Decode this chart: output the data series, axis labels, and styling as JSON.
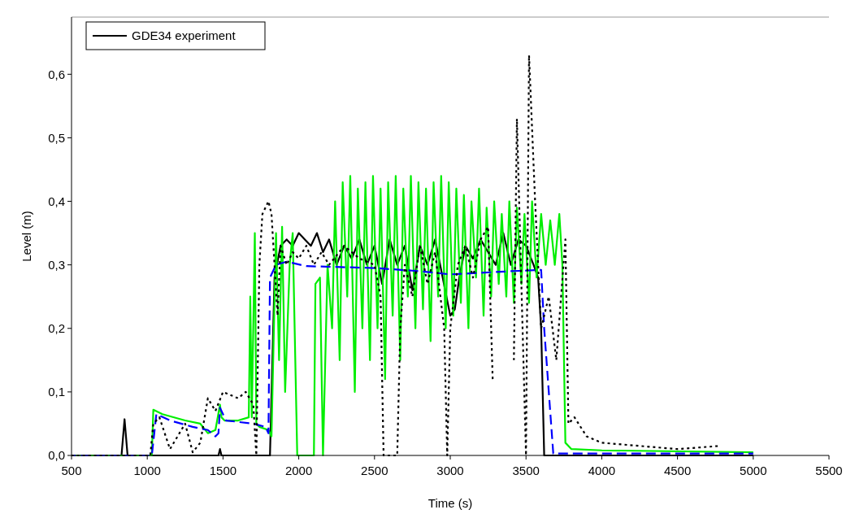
{
  "chart_data": {
    "type": "line",
    "xlabel": "Time (s)",
    "ylabel": "Level (m)",
    "xlim": [
      500,
      5500
    ],
    "xticks": [
      500,
      1000,
      1500,
      2000,
      2500,
      3000,
      3500,
      4000,
      4500,
      5000,
      5500
    ],
    "ylim": [
      0,
      0.69
    ],
    "yticks": [
      {
        "value": 0,
        "label": "0,0"
      },
      {
        "value": 0.1,
        "label": "0,1"
      },
      {
        "value": 0.2,
        "label": "0,2"
      },
      {
        "value": 0.3,
        "label": "0,3"
      },
      {
        "value": 0.4,
        "label": "0,4"
      },
      {
        "value": 0.5,
        "label": "0,5"
      },
      {
        "value": 0.6,
        "label": "0,6"
      }
    ],
    "grid": false,
    "legend": "top left",
    "series": [
      {
        "name": "GDE34 experiment",
        "color": "#000000",
        "line_style": "solid",
        "x": [
          500,
          830,
          850,
          870,
          1470,
          1480,
          1490,
          1810,
          1840,
          1880,
          1920,
          1960,
          2000,
          2040,
          2080,
          2120,
          2160,
          2200,
          2250,
          2300,
          2350,
          2400,
          2450,
          2500,
          2550,
          2600,
          2650,
          2700,
          2750,
          2800,
          2850,
          2900,
          2950,
          3000,
          3030,
          3060,
          3100,
          3150,
          3200,
          3250,
          3300,
          3350,
          3400,
          3450,
          3500,
          3550,
          3580,
          3600,
          3620,
          5000
        ],
        "values": [
          0,
          0,
          0.057,
          0,
          0,
          0.01,
          0,
          0,
          0.28,
          0.33,
          0.34,
          0.33,
          0.35,
          0.34,
          0.33,
          0.35,
          0.32,
          0.34,
          0.3,
          0.33,
          0.31,
          0.34,
          0.3,
          0.33,
          0.27,
          0.34,
          0.3,
          0.33,
          0.26,
          0.33,
          0.3,
          0.34,
          0.28,
          0.22,
          0.23,
          0.28,
          0.33,
          0.31,
          0.34,
          0.32,
          0.3,
          0.35,
          0.3,
          0.34,
          0.33,
          0.3,
          0.28,
          0.2,
          0,
          0
        ]
      },
      {
        "color": "#00ee00",
        "line_style": "solid",
        "x": [
          500,
          1030,
          1040,
          1100,
          1250,
          1350,
          1400,
          1450,
          1480,
          1490,
          1510,
          1600,
          1670,
          1680,
          1690,
          1710,
          1720,
          1740,
          1800,
          1820,
          1850,
          1870,
          1890,
          1910,
          1940,
          1960,
          1990,
          2100,
          2110,
          2140,
          2160,
          2190,
          2220,
          2240,
          2270,
          2290,
          2320,
          2340,
          2370,
          2390,
          2420,
          2440,
          2470,
          2490,
          2520,
          2540,
          2570,
          2590,
          2620,
          2640,
          2670,
          2690,
          2720,
          2740,
          2770,
          2790,
          2820,
          2840,
          2870,
          2890,
          2920,
          2940,
          2970,
          2990,
          3020,
          3040,
          3070,
          3090,
          3120,
          3140,
          3170,
          3190,
          3220,
          3240,
          3270,
          3290,
          3320,
          3340,
          3370,
          3390,
          3420,
          3440,
          3470,
          3490,
          3520,
          3540,
          3570,
          3600,
          3630,
          3660,
          3690,
          3720,
          3740,
          3760,
          3800,
          4000,
          5000
        ],
        "values": [
          0,
          0,
          0.072,
          0.065,
          0.055,
          0.05,
          0.035,
          0.04,
          0.08,
          0.06,
          0.055,
          0.055,
          0.06,
          0.25,
          0.06,
          0.35,
          0.05,
          0.045,
          0.04,
          0.03,
          0.35,
          0.15,
          0.36,
          0.1,
          0.3,
          0.35,
          0,
          0,
          0.27,
          0.28,
          0,
          0.3,
          0.2,
          0.4,
          0.15,
          0.43,
          0.25,
          0.44,
          0.1,
          0.42,
          0.2,
          0.43,
          0.15,
          0.44,
          0.2,
          0.42,
          0.12,
          0.43,
          0.22,
          0.44,
          0.15,
          0.42,
          0.25,
          0.44,
          0.2,
          0.43,
          0.23,
          0.42,
          0.18,
          0.43,
          0.25,
          0.44,
          0.2,
          0.43,
          0.22,
          0.42,
          0.24,
          0.41,
          0.2,
          0.4,
          0.28,
          0.42,
          0.22,
          0.39,
          0.25,
          0.4,
          0.27,
          0.38,
          0.25,
          0.4,
          0.24,
          0.39,
          0.27,
          0.38,
          0.24,
          0.4,
          0.28,
          0.38,
          0.3,
          0.37,
          0.3,
          0.38,
          0.3,
          0.02,
          0.01,
          0.008,
          0.005
        ]
      },
      {
        "color": "#0000ff",
        "line_style": "dashed",
        "x": [
          500,
          1030,
          1060,
          1150,
          1300,
          1400,
          1450,
          1470,
          1480,
          1520,
          1700,
          1780,
          1800,
          1810,
          1850,
          1920,
          2050,
          2500,
          2800,
          3000,
          3400,
          3600,
          3620,
          3680,
          5000
        ],
        "values": [
          0,
          0,
          0.065,
          0.055,
          0.045,
          0.04,
          0.03,
          0.035,
          0.075,
          0.055,
          0.05,
          0.045,
          0.035,
          0.28,
          0.3,
          0.305,
          0.298,
          0.295,
          0.29,
          0.285,
          0.29,
          0.292,
          0.2,
          0.003,
          0.003
        ]
      },
      {
        "color": "#000000",
        "line_style": "dotted",
        "x": [
          500,
          1020,
          1040,
          1080,
          1150,
          1200,
          1250,
          1300,
          1350,
          1400,
          1450,
          1500,
          1600,
          1650,
          1700,
          1720,
          1740,
          1760,
          1800,
          1820,
          1840,
          1860,
          1880,
          1920,
          1960,
          2000,
          2050,
          2100,
          2150,
          2200,
          2300,
          2400,
          2500,
          2540,
          2560,
          2650,
          2670,
          2700,
          2750,
          2800,
          2850,
          2900,
          2960,
          2980,
          3000,
          3050,
          3100,
          3150,
          3200,
          3250,
          3280,
          3290,
          3380,
          3420,
          3440,
          3500,
          3520,
          3560,
          3600,
          3650,
          3700,
          3760,
          3780,
          3820,
          3900,
          4000,
          4500,
          4780
        ],
        "values": [
          0,
          0,
          0.05,
          0.06,
          0.01,
          0.03,
          0.05,
          0.005,
          0.02,
          0.09,
          0.07,
          0.1,
          0.09,
          0.1,
          0.08,
          0,
          0.3,
          0.38,
          0.4,
          0.38,
          0.3,
          0.22,
          0.33,
          0.3,
          0.32,
          0.31,
          0.33,
          0.3,
          0.32,
          0.3,
          0.33,
          0.31,
          0.3,
          0.25,
          0,
          0,
          0.2,
          0.3,
          0.25,
          0.33,
          0.27,
          0.32,
          0.2,
          0,
          0.2,
          0.3,
          0.33,
          0.28,
          0.34,
          0.36,
          0.12,
          null,
          null,
          0.15,
          0.53,
          0,
          0.63,
          0.4,
          0.2,
          0.25,
          0.15,
          0.34,
          0.05,
          0.06,
          0.03,
          0.02,
          0.01,
          0.015
        ]
      }
    ]
  }
}
